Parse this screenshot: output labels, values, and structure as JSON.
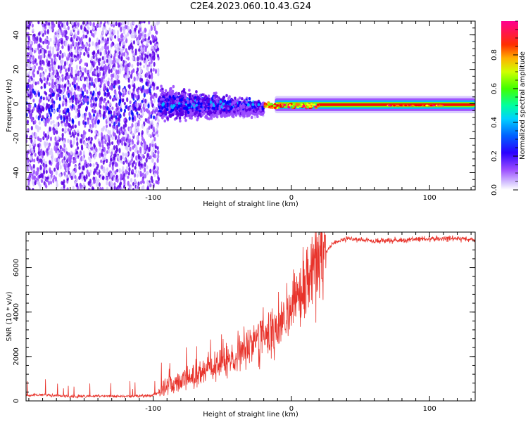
{
  "title": "C2E4.2023.060.10.43.G24",
  "chart_data": [
    {
      "type": "heatmap",
      "panel": "spectrogram",
      "xlabel": "Height of straight line (km)",
      "ylabel": "Frequency (Hz)",
      "xlim": [
        -192,
        133
      ],
      "ylim": [
        -50,
        48
      ],
      "xticks": [
        -100,
        0,
        100
      ],
      "xtick_labels": [
        "-100",
        "0",
        "100"
      ],
      "yticks": [
        -40,
        -20,
        0,
        20,
        40
      ],
      "ytick_labels": [
        "-40",
        "-20",
        "0",
        "20",
        "40"
      ],
      "colorbar": {
        "label": "Normalized spectral amplitude",
        "range": [
          0,
          1
        ],
        "ticks": [
          0.0,
          0.2,
          0.4,
          0.6,
          0.8
        ],
        "tick_labels": [
          "0.0",
          "0.2",
          "0.4",
          "0.6",
          "0.8"
        ],
        "colors": [
          "#ffffff",
          "#d8c8ff",
          "#9b4dff",
          "#5a00e6",
          "#0000ff",
          "#00bfff",
          "#00ff80",
          "#80ff00",
          "#ffff00",
          "#ff8000",
          "#ff0000",
          "#ff0080"
        ]
      },
      "regions": [
        {
          "x_range": [
            -192,
            -96
          ],
          "freq_spread": [
            -50,
            48
          ],
          "amplitude": [
            0.05,
            0.3
          ],
          "description": "scattered noise"
        },
        {
          "x_range": [
            -96,
            -20
          ],
          "freq_spread": [
            -12,
            12
          ],
          "amplitude": [
            0.15,
            0.5
          ],
          "description": "converging signal"
        },
        {
          "x_range": [
            -20,
            133
          ],
          "freq_spread": [
            -5,
            5
          ],
          "amplitude": [
            0.4,
            1.0
          ],
          "description": "narrow carrier near 0 Hz"
        }
      ]
    },
    {
      "type": "line",
      "panel": "snr",
      "xlabel": "Height of straight line (km)",
      "ylabel": "SNR (10 * v/v)",
      "xlim": [
        -192,
        133
      ],
      "ylim": [
        0,
        7600
      ],
      "xticks": [
        -100,
        0,
        100
      ],
      "xtick_labels": [
        "-100",
        "0",
        "100"
      ],
      "yticks": [
        0,
        2000,
        4000,
        6000
      ],
      "ytick_labels": [
        "0",
        "2000",
        "4000",
        "6000"
      ],
      "color": "#e8322a",
      "series": [
        {
          "name": "SNR",
          "x": [
            -192,
            -180,
            -160,
            -140,
            -120,
            -100,
            -95,
            -90,
            -80,
            -70,
            -60,
            -50,
            -40,
            -30,
            -20,
            -10,
            0,
            10,
            20,
            30,
            40,
            60,
            80,
            100,
            120,
            133
          ],
          "y": [
            250,
            280,
            200,
            220,
            200,
            250,
            400,
            700,
            900,
            1100,
            1400,
            1700,
            2000,
            2500,
            3000,
            3300,
            4000,
            5000,
            6300,
            7100,
            7300,
            7200,
            7250,
            7300,
            7300,
            7250
          ]
        }
      ]
    }
  ]
}
